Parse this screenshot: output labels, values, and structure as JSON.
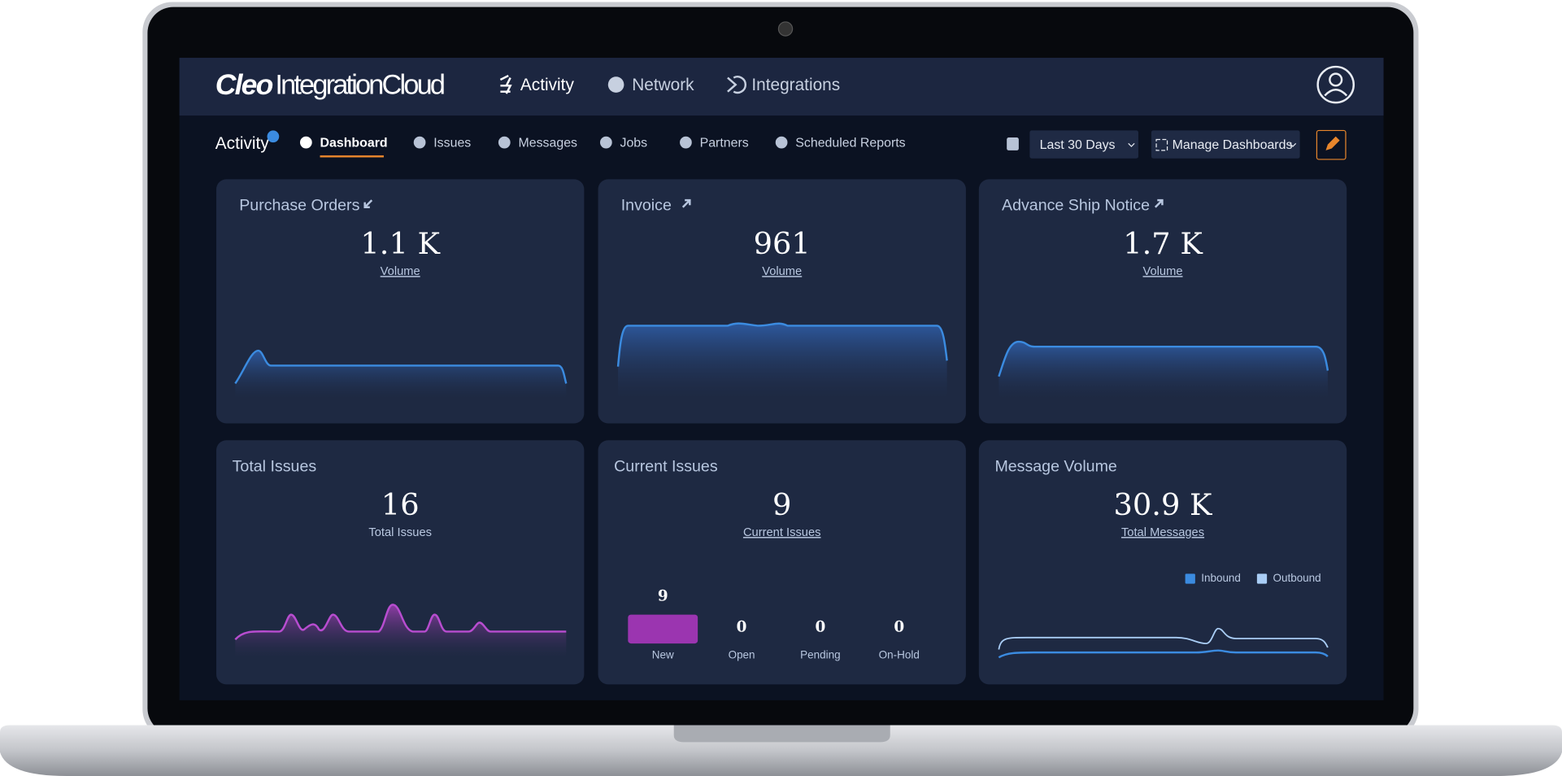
{
  "header": {
    "brand_bold": "Cleo",
    "brand": "IntegrationCloud",
    "nav": [
      "Activity",
      "Network",
      "Integrations"
    ]
  },
  "subnav": {
    "section": "Activity",
    "tabs": [
      "Dashboard",
      "Issues",
      "Messages",
      "Jobs",
      "Partners",
      "Scheduled Reports"
    ],
    "date_range": "Last 30 Days",
    "manage": "Manage Dashboards"
  },
  "cards": [
    {
      "title": "Purchase Orders",
      "value": "1.1 K",
      "label": "Volume"
    },
    {
      "title": "Invoice",
      "value": "961",
      "label": "Volume"
    },
    {
      "title": "Advance Ship Notice",
      "value": "1.7 K",
      "label": "Volume"
    },
    {
      "title": "Total Issues",
      "value": "16",
      "label": "Total Issues"
    },
    {
      "title": "Current Issues",
      "value": "9",
      "label": "Current Issues",
      "bars": [
        {
          "label": "New",
          "count": 9
        },
        {
          "label": "Open",
          "count": 0
        },
        {
          "label": "Pending",
          "count": 0
        },
        {
          "label": "On-Hold",
          "count": 0
        }
      ]
    },
    {
      "title": "Message Volume",
      "value": "30.9 K",
      "label": "Total Messages",
      "legend": [
        "Inbound",
        "Outbound"
      ]
    }
  ]
}
